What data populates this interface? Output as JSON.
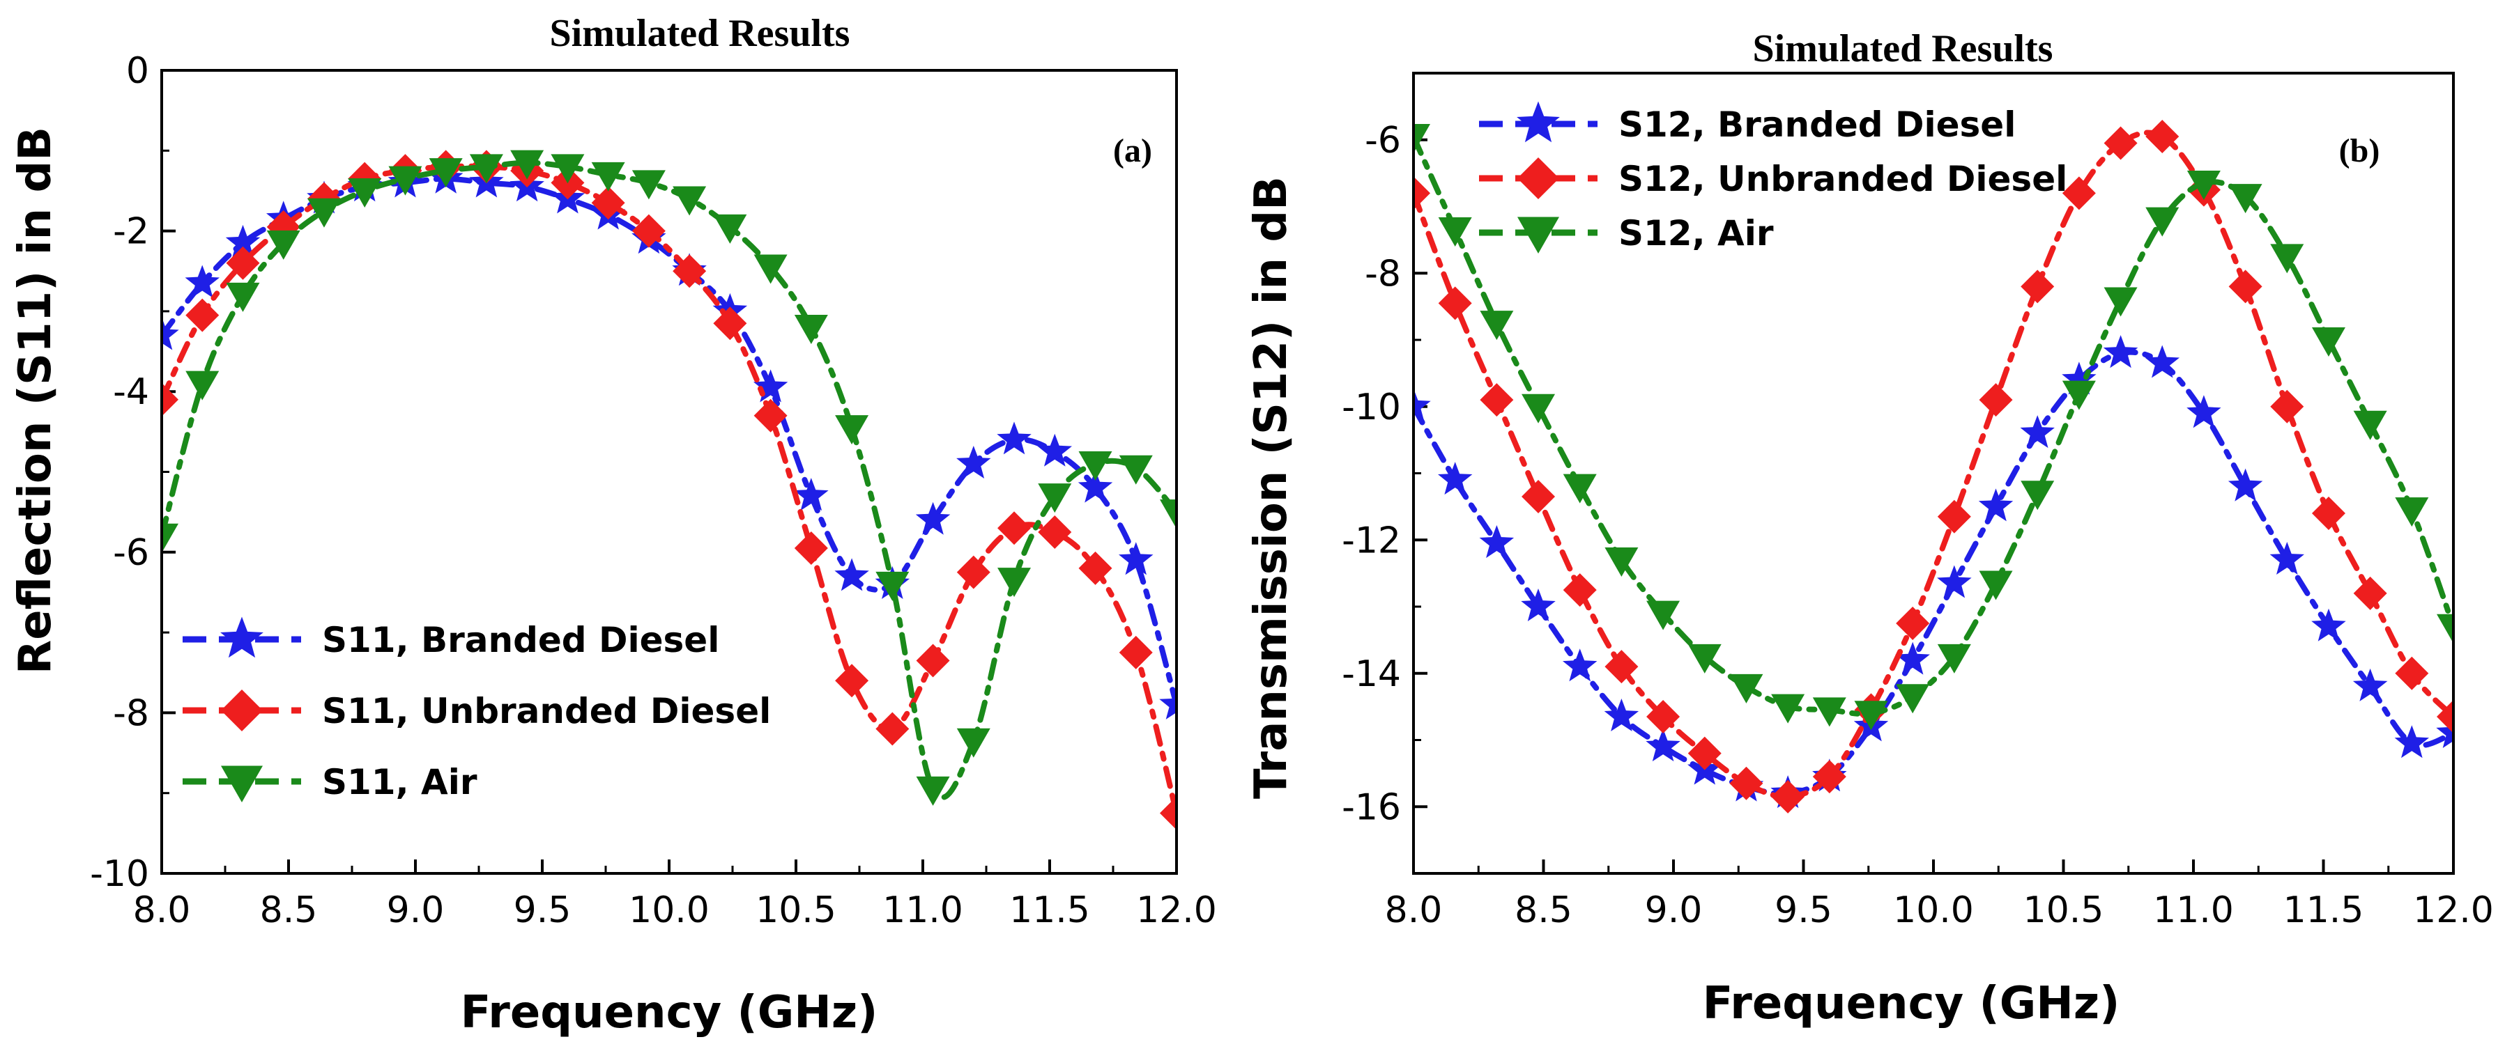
{
  "chart_data": [
    {
      "type": "line",
      "title": "Simulated Results",
      "panel_label": "(a)",
      "xlabel": "Frequency (GHz)",
      "ylabel": "Reflection (S11) in dB",
      "xlim": [
        8.0,
        12.0
      ],
      "ylim": [
        -10,
        0
      ],
      "xticks": [
        "8.0",
        "8.5",
        "9.0",
        "9.5",
        "10.0",
        "10.5",
        "11.0",
        "11.5",
        "12.0"
      ],
      "yticks": [
        "0",
        "-2",
        "-4",
        "-6",
        "-8",
        "-10"
      ],
      "xtick_values": [
        8.0,
        8.5,
        9.0,
        9.5,
        10.0,
        10.5,
        11.0,
        11.5,
        12.0
      ],
      "ytick_values": [
        0,
        -2,
        -4,
        -6,
        -8,
        -10
      ],
      "legend_position": "bottom-left",
      "series": [
        {
          "name": "S11, Branded Diesel",
          "color": "#1f1fe6",
          "marker": "star",
          "x": [
            8.0,
            8.16,
            8.32,
            8.48,
            8.64,
            8.8,
            8.96,
            9.12,
            9.28,
            9.44,
            9.6,
            9.76,
            9.92,
            10.08,
            10.24,
            10.4,
            10.56,
            10.72,
            10.88,
            11.04,
            11.2,
            11.36,
            11.52,
            11.68,
            11.84,
            12.0
          ],
          "values": [
            -3.3,
            -2.65,
            -2.15,
            -1.85,
            -1.6,
            -1.45,
            -1.4,
            -1.35,
            -1.4,
            -1.45,
            -1.6,
            -1.8,
            -2.1,
            -2.5,
            -3.0,
            -3.95,
            -5.3,
            -6.3,
            -6.4,
            -5.6,
            -4.9,
            -4.6,
            -4.75,
            -5.2,
            -6.1,
            -7.9
          ]
        },
        {
          "name": "S11, Unbranded Diesel",
          "color": "#ee1e1e",
          "marker": "diamond",
          "x": [
            8.0,
            8.16,
            8.32,
            8.48,
            8.64,
            8.8,
            8.96,
            9.12,
            9.28,
            9.44,
            9.6,
            9.76,
            9.92,
            10.08,
            10.24,
            10.4,
            10.56,
            10.72,
            10.88,
            11.04,
            11.2,
            11.36,
            11.52,
            11.68,
            11.84,
            12.0
          ],
          "values": [
            -4.1,
            -3.05,
            -2.4,
            -1.95,
            -1.6,
            -1.35,
            -1.25,
            -1.2,
            -1.2,
            -1.25,
            -1.4,
            -1.65,
            -2.0,
            -2.5,
            -3.15,
            -4.3,
            -5.95,
            -7.6,
            -8.2,
            -7.35,
            -6.25,
            -5.7,
            -5.75,
            -6.2,
            -7.25,
            -9.25
          ]
        },
        {
          "name": "S11, Air",
          "color": "#1a8a1a",
          "marker": "triangle-down",
          "x": [
            8.0,
            8.16,
            8.32,
            8.48,
            8.64,
            8.8,
            8.96,
            9.12,
            9.28,
            9.44,
            9.6,
            9.76,
            9.92,
            10.08,
            10.24,
            10.4,
            10.56,
            10.72,
            10.88,
            11.04,
            11.2,
            11.36,
            11.52,
            11.68,
            11.84,
            12.0
          ],
          "values": [
            -5.8,
            -3.9,
            -2.8,
            -2.15,
            -1.75,
            -1.5,
            -1.35,
            -1.25,
            -1.2,
            -1.15,
            -1.2,
            -1.3,
            -1.4,
            -1.6,
            -1.95,
            -2.45,
            -3.2,
            -4.45,
            -6.4,
            -8.95,
            -8.35,
            -6.35,
            -5.3,
            -4.9,
            -4.95,
            -5.5
          ]
        }
      ]
    },
    {
      "type": "line",
      "title": "Simulated Results",
      "panel_label": "(b)",
      "xlabel": "Frequency (GHz)",
      "ylabel": "Transmission (S12) in dB",
      "xlim": [
        8.0,
        12.0
      ],
      "ylim": [
        -17,
        -5
      ],
      "xticks": [
        "8.0",
        "8.5",
        "9.0",
        "9.5",
        "10.0",
        "10.5",
        "11.0",
        "11.5",
        "12.0"
      ],
      "yticks": [
        "-6",
        "-8",
        "-10",
        "-12",
        "-14",
        "-16"
      ],
      "xtick_values": [
        8.0,
        8.5,
        9.0,
        9.5,
        10.0,
        10.5,
        11.0,
        11.5,
        12.0
      ],
      "ytick_values": [
        -6,
        -8,
        -10,
        -12,
        -14,
        -16
      ],
      "legend_position": "top-left",
      "series": [
        {
          "name": "S12, Branded Diesel",
          "color": "#1f1fe6",
          "marker": "star",
          "x": [
            8.0,
            8.16,
            8.32,
            8.48,
            8.64,
            8.8,
            8.96,
            9.12,
            9.28,
            9.44,
            9.6,
            9.76,
            9.92,
            10.08,
            10.24,
            10.4,
            10.56,
            10.72,
            10.88,
            11.04,
            11.2,
            11.36,
            11.52,
            11.68,
            11.84,
            12.0
          ],
          "values": [
            -10.0,
            -11.1,
            -12.05,
            -13.0,
            -13.9,
            -14.65,
            -15.1,
            -15.45,
            -15.7,
            -15.8,
            -15.55,
            -14.8,
            -13.8,
            -12.65,
            -11.5,
            -10.4,
            -9.6,
            -9.2,
            -9.35,
            -10.1,
            -11.2,
            -12.3,
            -13.3,
            -14.2,
            -15.05,
            -14.9
          ]
        },
        {
          "name": "S12, Unbranded Diesel",
          "color": "#ee1e1e",
          "marker": "diamond",
          "x": [
            8.0,
            8.16,
            8.32,
            8.48,
            8.64,
            8.8,
            8.96,
            9.12,
            9.28,
            9.44,
            9.6,
            9.76,
            9.92,
            10.08,
            10.24,
            10.4,
            10.56,
            10.72,
            10.88,
            11.04,
            11.2,
            11.36,
            11.52,
            11.68,
            11.84,
            12.0
          ],
          "values": [
            -6.8,
            -8.45,
            -9.9,
            -11.35,
            -12.75,
            -13.9,
            -14.65,
            -15.2,
            -15.65,
            -15.85,
            -15.55,
            -14.55,
            -13.25,
            -11.65,
            -9.9,
            -8.2,
            -6.8,
            -6.05,
            -5.95,
            -6.75,
            -8.2,
            -10.0,
            -11.6,
            -12.8,
            -14.0,
            -14.65
          ]
        },
        {
          "name": "S12, Air",
          "color": "#1a8a1a",
          "marker": "triangle-down",
          "x": [
            8.0,
            8.16,
            8.32,
            8.48,
            8.64,
            8.8,
            8.96,
            9.12,
            9.28,
            9.44,
            9.6,
            9.76,
            9.92,
            10.08,
            10.24,
            10.4,
            10.56,
            10.72,
            10.88,
            11.04,
            11.2,
            11.36,
            11.52,
            11.68,
            11.84,
            12.0
          ],
          "values": [
            -5.95,
            -7.35,
            -8.75,
            -10.0,
            -11.2,
            -12.3,
            -13.1,
            -13.75,
            -14.2,
            -14.5,
            -14.55,
            -14.6,
            -14.35,
            -13.75,
            -12.65,
            -11.3,
            -9.8,
            -8.4,
            -7.2,
            -6.65,
            -6.85,
            -7.75,
            -9.0,
            -10.25,
            -11.55,
            -13.3
          ]
        }
      ]
    }
  ]
}
